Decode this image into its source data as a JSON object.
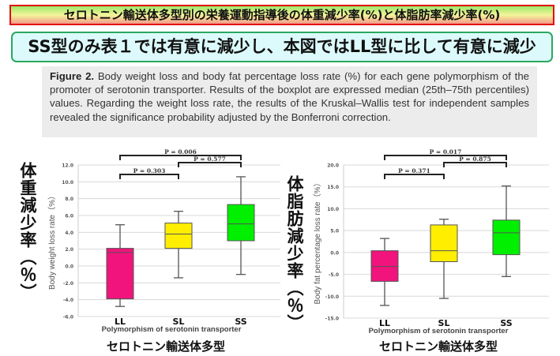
{
  "title": "セロトニン輸送体多型別の栄養運動指導後の体重減少率(%)と体脂肪率減少率(%)",
  "subtitle": "SS型のみ表１では有意に減少し、本図ではLL型に比して有意に減少",
  "caption": {
    "label": "Figure 2.",
    "text": " Body weight loss and body fat percentage loss rate (%) for each gene polymorphism of the promoter of serotonin transporter. Results of the boxplot are expressed median (25th–75th percentiles) values. Regarding the weight loss rate, the results of the Kruskal–Wallis test for independent samples revealed the significance probability adjusted by the Bonferroni correction."
  },
  "left_label": "体重減少率（％）",
  "right_label": "体脂肪減少率（％）",
  "bottom_label_left": "セロトニン輸送体多型",
  "bottom_label_right": "セロトニン輸送体多型",
  "chart_data": [
    {
      "type": "boxplot",
      "ylabel": "Body weight loss rate（%）",
      "xlabel": "Polymorphism of serotonin transporter",
      "categories": [
        "LL",
        "SL",
        "SS"
      ],
      "ylim": [
        -6,
        12
      ],
      "yticks": [
        "-6.0",
        "-4.0",
        "-2.0",
        "0.0",
        "2.0",
        "4.0",
        "6.0",
        "8.0",
        "10.0",
        "12.0"
      ],
      "grid": true,
      "boxes": [
        {
          "min": -4.8,
          "q1": -3.9,
          "median": 1.6,
          "q3": 2.1,
          "max": 4.9
        },
        {
          "min": -1.4,
          "q1": 2.1,
          "median": 3.8,
          "q3": 5.1,
          "max": 6.5
        },
        {
          "min": -1.0,
          "q1": 3.0,
          "median": 5.0,
          "q3": 7.3,
          "max": 10.6
        }
      ],
      "colors": [
        "#f0147c",
        "#ffee00",
        "#00f000"
      ],
      "comparisons": [
        {
          "from": "LL",
          "to": "SS",
          "label": "P = 0.006"
        },
        {
          "from": "SL",
          "to": "SS",
          "label": "P = 0.577"
        },
        {
          "from": "LL",
          "to": "SL",
          "label": "P = 0.303"
        }
      ]
    },
    {
      "type": "boxplot",
      "ylabel": "Body fat percentage loss rate（%）",
      "xlabel": "Polymorphism of serotonin transporter",
      "categories": [
        "LL",
        "SL",
        "SS"
      ],
      "ylim": [
        -15,
        20
      ],
      "yticks": [
        "-15.0",
        "-10.0",
        "-5.0",
        "0.0",
        "5.0",
        "10.0",
        "15.0",
        "20.0"
      ],
      "grid": true,
      "boxes": [
        {
          "min": -12.1,
          "q1": -6.6,
          "median": -3.2,
          "q3": 0.4,
          "max": 3.2
        },
        {
          "min": -10.5,
          "q1": -2.1,
          "median": 0.4,
          "q3": 6.3,
          "max": 7.6
        },
        {
          "min": -5.5,
          "q1": -0.5,
          "median": 4.5,
          "q3": 7.4,
          "max": 15.2
        }
      ],
      "colors": [
        "#f0147c",
        "#ffee00",
        "#00f000"
      ],
      "comparisons": [
        {
          "from": "LL",
          "to": "SS",
          "label": "P = 0.017"
        },
        {
          "from": "SL",
          "to": "SS",
          "label": "P = 0.875"
        },
        {
          "from": "LL",
          "to": "SL",
          "label": "P = 0.371"
        }
      ]
    }
  ]
}
